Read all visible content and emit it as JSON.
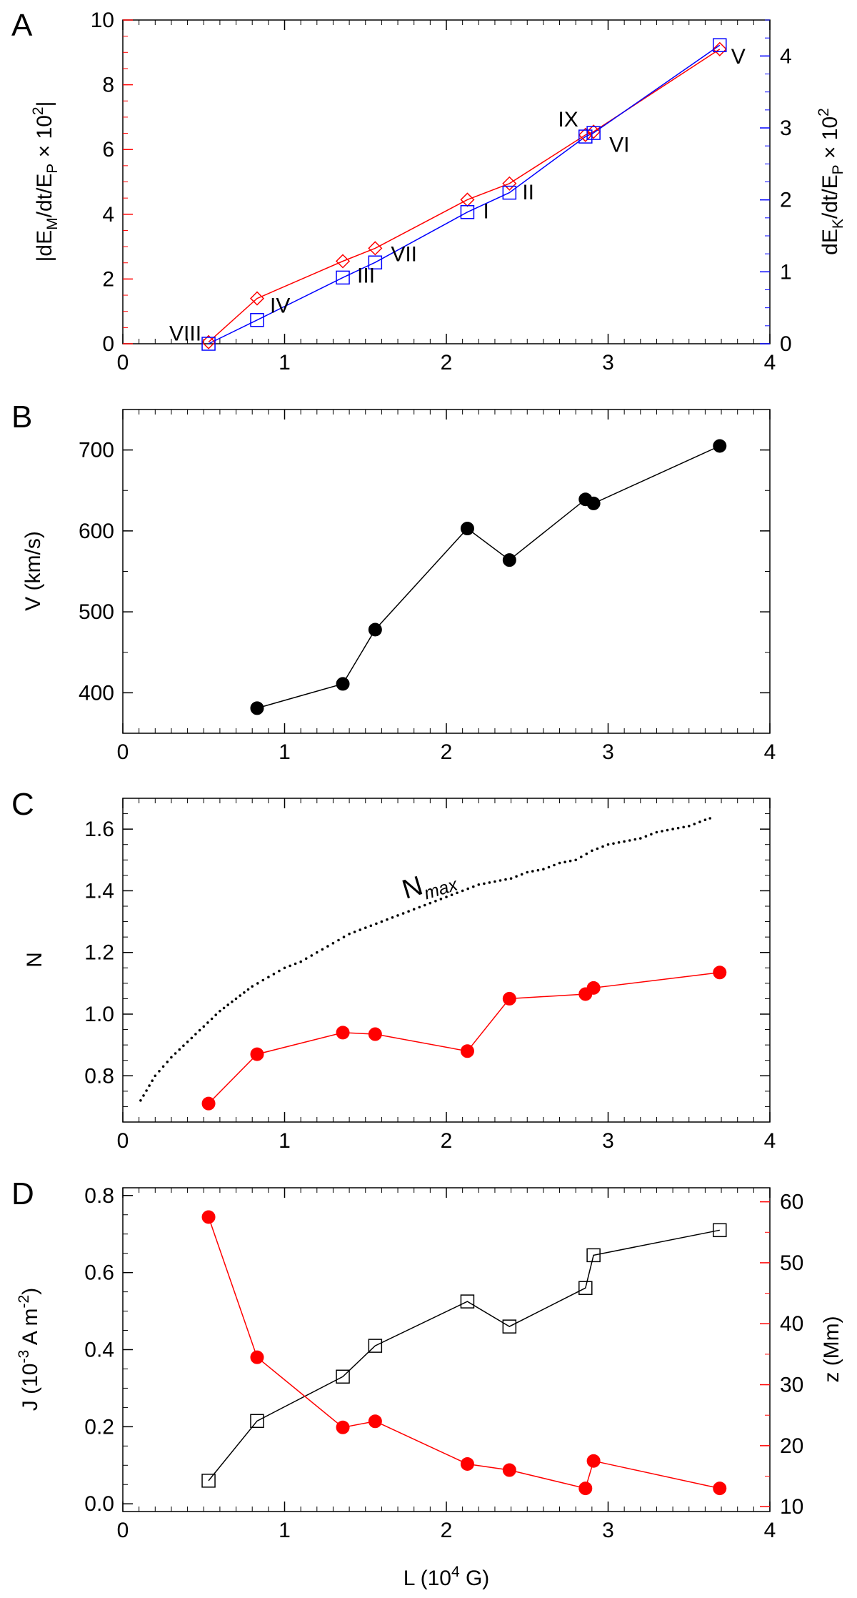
{
  "colors": {
    "red": "#ff0000",
    "blue": "#0000ff",
    "black": "#000000"
  },
  "chart_data": [
    {
      "panel": "A",
      "type": "line",
      "xlim": [
        0,
        4
      ],
      "xticks": [
        "0",
        "1",
        "2",
        "3",
        "4"
      ],
      "ylabel_left": "|dE_M/dt/E_P × 10^2|",
      "ylabel_left_parts": {
        "a": "|dE",
        "a_sub": "M",
        "b": "/dt/E",
        "b_sub": "P",
        "c": " × 10",
        "c_sup": "2",
        "d": "|"
      },
      "ylabel_right_parts": {
        "a": "dE",
        "a_sub": "K",
        "b": "/dt/E",
        "b_sub": "P",
        "c": " × 10",
        "c_sup": "2"
      },
      "ylim_left": [
        0,
        10
      ],
      "ylim_right": [
        0,
        4.5
      ],
      "yticks_left": [
        "0",
        "2",
        "4",
        "6",
        "8",
        "10"
      ],
      "yticks_right": [
        "0",
        "1",
        "2",
        "3",
        "4"
      ],
      "series": [
        {
          "name": "|dE_M/dt/E_P|",
          "axis": "left",
          "marker": "diamond",
          "color": "#ff0000",
          "x": [
            0.53,
            0.83,
            1.36,
            1.56,
            2.13,
            2.39,
            2.86,
            2.91,
            3.69
          ],
          "y": [
            0.05,
            1.4,
            2.55,
            2.95,
            4.45,
            4.95,
            6.45,
            6.55,
            9.1
          ]
        },
        {
          "name": "dE_K/dt/E_P",
          "axis": "right",
          "marker": "square",
          "color": "#0000ff",
          "x": [
            0.53,
            0.83,
            1.36,
            1.56,
            2.13,
            2.39,
            2.86,
            2.91,
            3.69
          ],
          "y": [
            0.0,
            0.33,
            0.92,
            1.13,
            1.83,
            2.1,
            2.88,
            2.93,
            4.15
          ]
        }
      ],
      "point_labels": [
        {
          "text": "VIII",
          "x": 0.53
        },
        {
          "text": "IV",
          "x": 0.83
        },
        {
          "text": "III",
          "x": 1.36
        },
        {
          "text": "VII",
          "x": 1.56
        },
        {
          "text": "I",
          "x": 2.13
        },
        {
          "text": "II",
          "x": 2.39
        },
        {
          "text": "IX",
          "x": 2.86
        },
        {
          "text": "VI",
          "x": 2.91
        },
        {
          "text": "V",
          "x": 3.69
        }
      ]
    },
    {
      "panel": "B",
      "type": "line",
      "xlim": [
        0,
        4
      ],
      "xticks": [
        "0",
        "1",
        "2",
        "3",
        "4"
      ],
      "ylabel": "V (km/s)",
      "ylim": [
        350,
        750
      ],
      "yticks": [
        "400",
        "500",
        "600",
        "700"
      ],
      "series": [
        {
          "name": "V",
          "marker": "circle",
          "color": "#000000",
          "x": [
            0.83,
            1.36,
            1.56,
            2.13,
            2.39,
            2.86,
            2.91,
            3.69
          ],
          "y": [
            381,
            411,
            478,
            603,
            564,
            639,
            634,
            705
          ]
        }
      ]
    },
    {
      "panel": "C",
      "type": "line",
      "xlim": [
        0,
        4
      ],
      "xticks": [
        "0",
        "1",
        "2",
        "3",
        "4"
      ],
      "ylabel": "N",
      "ylim": [
        0.65,
        1.7
      ],
      "yticks": [
        "0.8",
        "1.0",
        "1.2",
        "1.4",
        "1.6"
      ],
      "nmax_label": {
        "main": "N",
        "sub": "max"
      },
      "nmax_curve": {
        "x": [
          0.11,
          0.2,
          0.3,
          0.4,
          0.5,
          0.6,
          0.7,
          0.8,
          0.9,
          1.0,
          1.1,
          1.2,
          1.3,
          1.4,
          1.5,
          1.6,
          1.7,
          1.8,
          1.9,
          2.0,
          2.1,
          2.2,
          2.3,
          2.4,
          2.5,
          2.6,
          2.7,
          2.8,
          2.9,
          3.0,
          3.1,
          3.2,
          3.3,
          3.4,
          3.5,
          3.6,
          3.66
        ],
        "y": [
          0.72,
          0.8,
          0.86,
          0.91,
          0.96,
          1.01,
          1.05,
          1.09,
          1.12,
          1.15,
          1.17,
          1.2,
          1.23,
          1.26,
          1.28,
          1.3,
          1.32,
          1.34,
          1.36,
          1.38,
          1.4,
          1.42,
          1.43,
          1.44,
          1.46,
          1.47,
          1.49,
          1.5,
          1.53,
          1.55,
          1.56,
          1.57,
          1.59,
          1.6,
          1.61,
          1.63,
          1.64
        ]
      },
      "series": [
        {
          "name": "N",
          "marker": "circle",
          "color": "#ff0000",
          "x": [
            0.53,
            0.83,
            1.36,
            1.56,
            2.13,
            2.39,
            2.86,
            2.91,
            3.69
          ],
          "y": [
            0.71,
            0.87,
            0.94,
            0.935,
            0.88,
            1.05,
            1.065,
            1.085,
            1.135
          ]
        }
      ]
    },
    {
      "panel": "D",
      "type": "line",
      "xlim": [
        0,
        4
      ],
      "xticks": [
        "0",
        "1",
        "2",
        "3",
        "4"
      ],
      "xlabel_parts": {
        "a": "L (10",
        "sup": "4",
        "b": " G)"
      },
      "ylabel_left_parts": {
        "a": "J (10",
        "sup": "-3",
        "b": " A m",
        "sup2": "-2",
        "c": ")"
      },
      "ylabel_right": "z (Mm)",
      "ylim_left": [
        -0.02,
        0.82
      ],
      "ylim_right": [
        9.2,
        62.3
      ],
      "yticks_left": [
        "0.0",
        "0.2",
        "0.4",
        "0.6",
        "0.8"
      ],
      "yticks_right": [
        "10",
        "20",
        "30",
        "40",
        "50",
        "60"
      ],
      "series": [
        {
          "name": "J",
          "axis": "left",
          "marker": "square",
          "color": "#000000",
          "x": [
            0.53,
            0.83,
            1.36,
            1.56,
            2.13,
            2.39,
            2.86,
            2.91,
            3.69
          ],
          "y": [
            0.06,
            0.215,
            0.33,
            0.41,
            0.525,
            0.46,
            0.56,
            0.645,
            0.71
          ]
        },
        {
          "name": "z",
          "axis": "right",
          "marker": "circle",
          "color": "#ff0000",
          "x": [
            0.53,
            0.83,
            1.36,
            1.56,
            2.13,
            2.39,
            2.86,
            2.91,
            3.69
          ],
          "y": [
            57.5,
            34.5,
            23.0,
            24.0,
            17.0,
            16.0,
            13.0,
            17.5,
            13.0
          ]
        }
      ]
    }
  ]
}
